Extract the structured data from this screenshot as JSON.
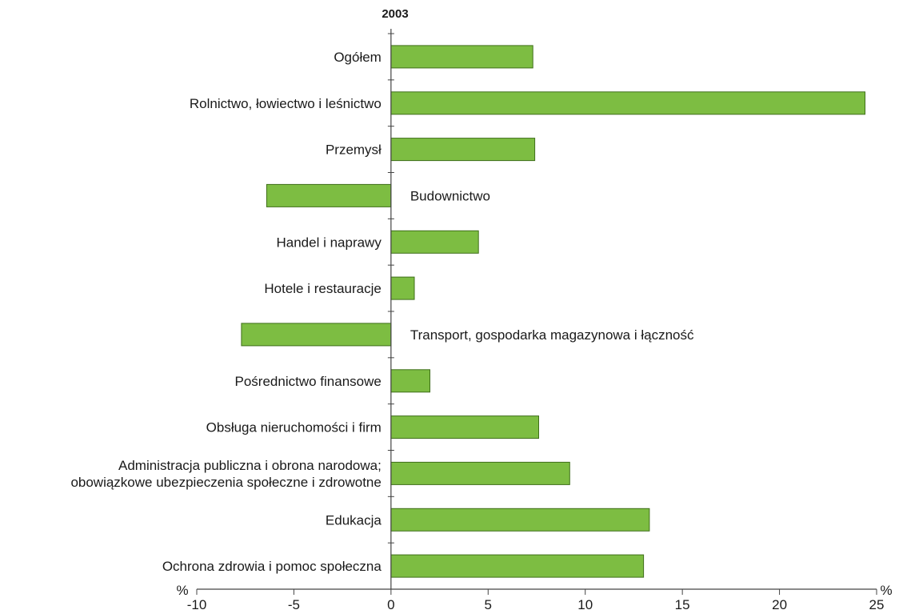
{
  "chart_data": {
    "type": "bar",
    "orientation": "horizontal",
    "title": "2003",
    "unit_left": "%",
    "unit_right": "%",
    "bar_color": "#7dbd42",
    "bar_stroke": "#3f6f1a",
    "xlim": [
      -10,
      25
    ],
    "xticks": [
      -10,
      -5,
      0,
      5,
      10,
      15,
      20,
      25
    ],
    "xtick_labels": [
      "-10",
      "-5",
      "0",
      "5",
      "10",
      "15",
      "20",
      "25"
    ],
    "grid": false,
    "categories": [
      [
        "Ogółem"
      ],
      [
        "Rolnictwo, łowiectwo i leśnictwo"
      ],
      [
        "Przemysł"
      ],
      [
        "Budownictwo"
      ],
      [
        "Handel i naprawy"
      ],
      [
        "Hotele i restauracje"
      ],
      [
        "Transport, gospodarka magazynowa i łączność"
      ],
      [
        "Pośrednictwo finansowe"
      ],
      [
        "Obsługa nieruchomości i firm"
      ],
      [
        "Administracja publiczna i obrona narodowa;",
        "obowiązkowe ubezpieczenia społeczne i zdrowotne"
      ],
      [
        "Edukacja"
      ],
      [
        "Ochrona zdrowia i pomoc społeczna"
      ]
    ],
    "values": [
      7.3,
      24.4,
      7.4,
      -6.4,
      4.5,
      1.2,
      -7.7,
      2.0,
      7.6,
      9.2,
      13.3,
      13.0
    ]
  }
}
